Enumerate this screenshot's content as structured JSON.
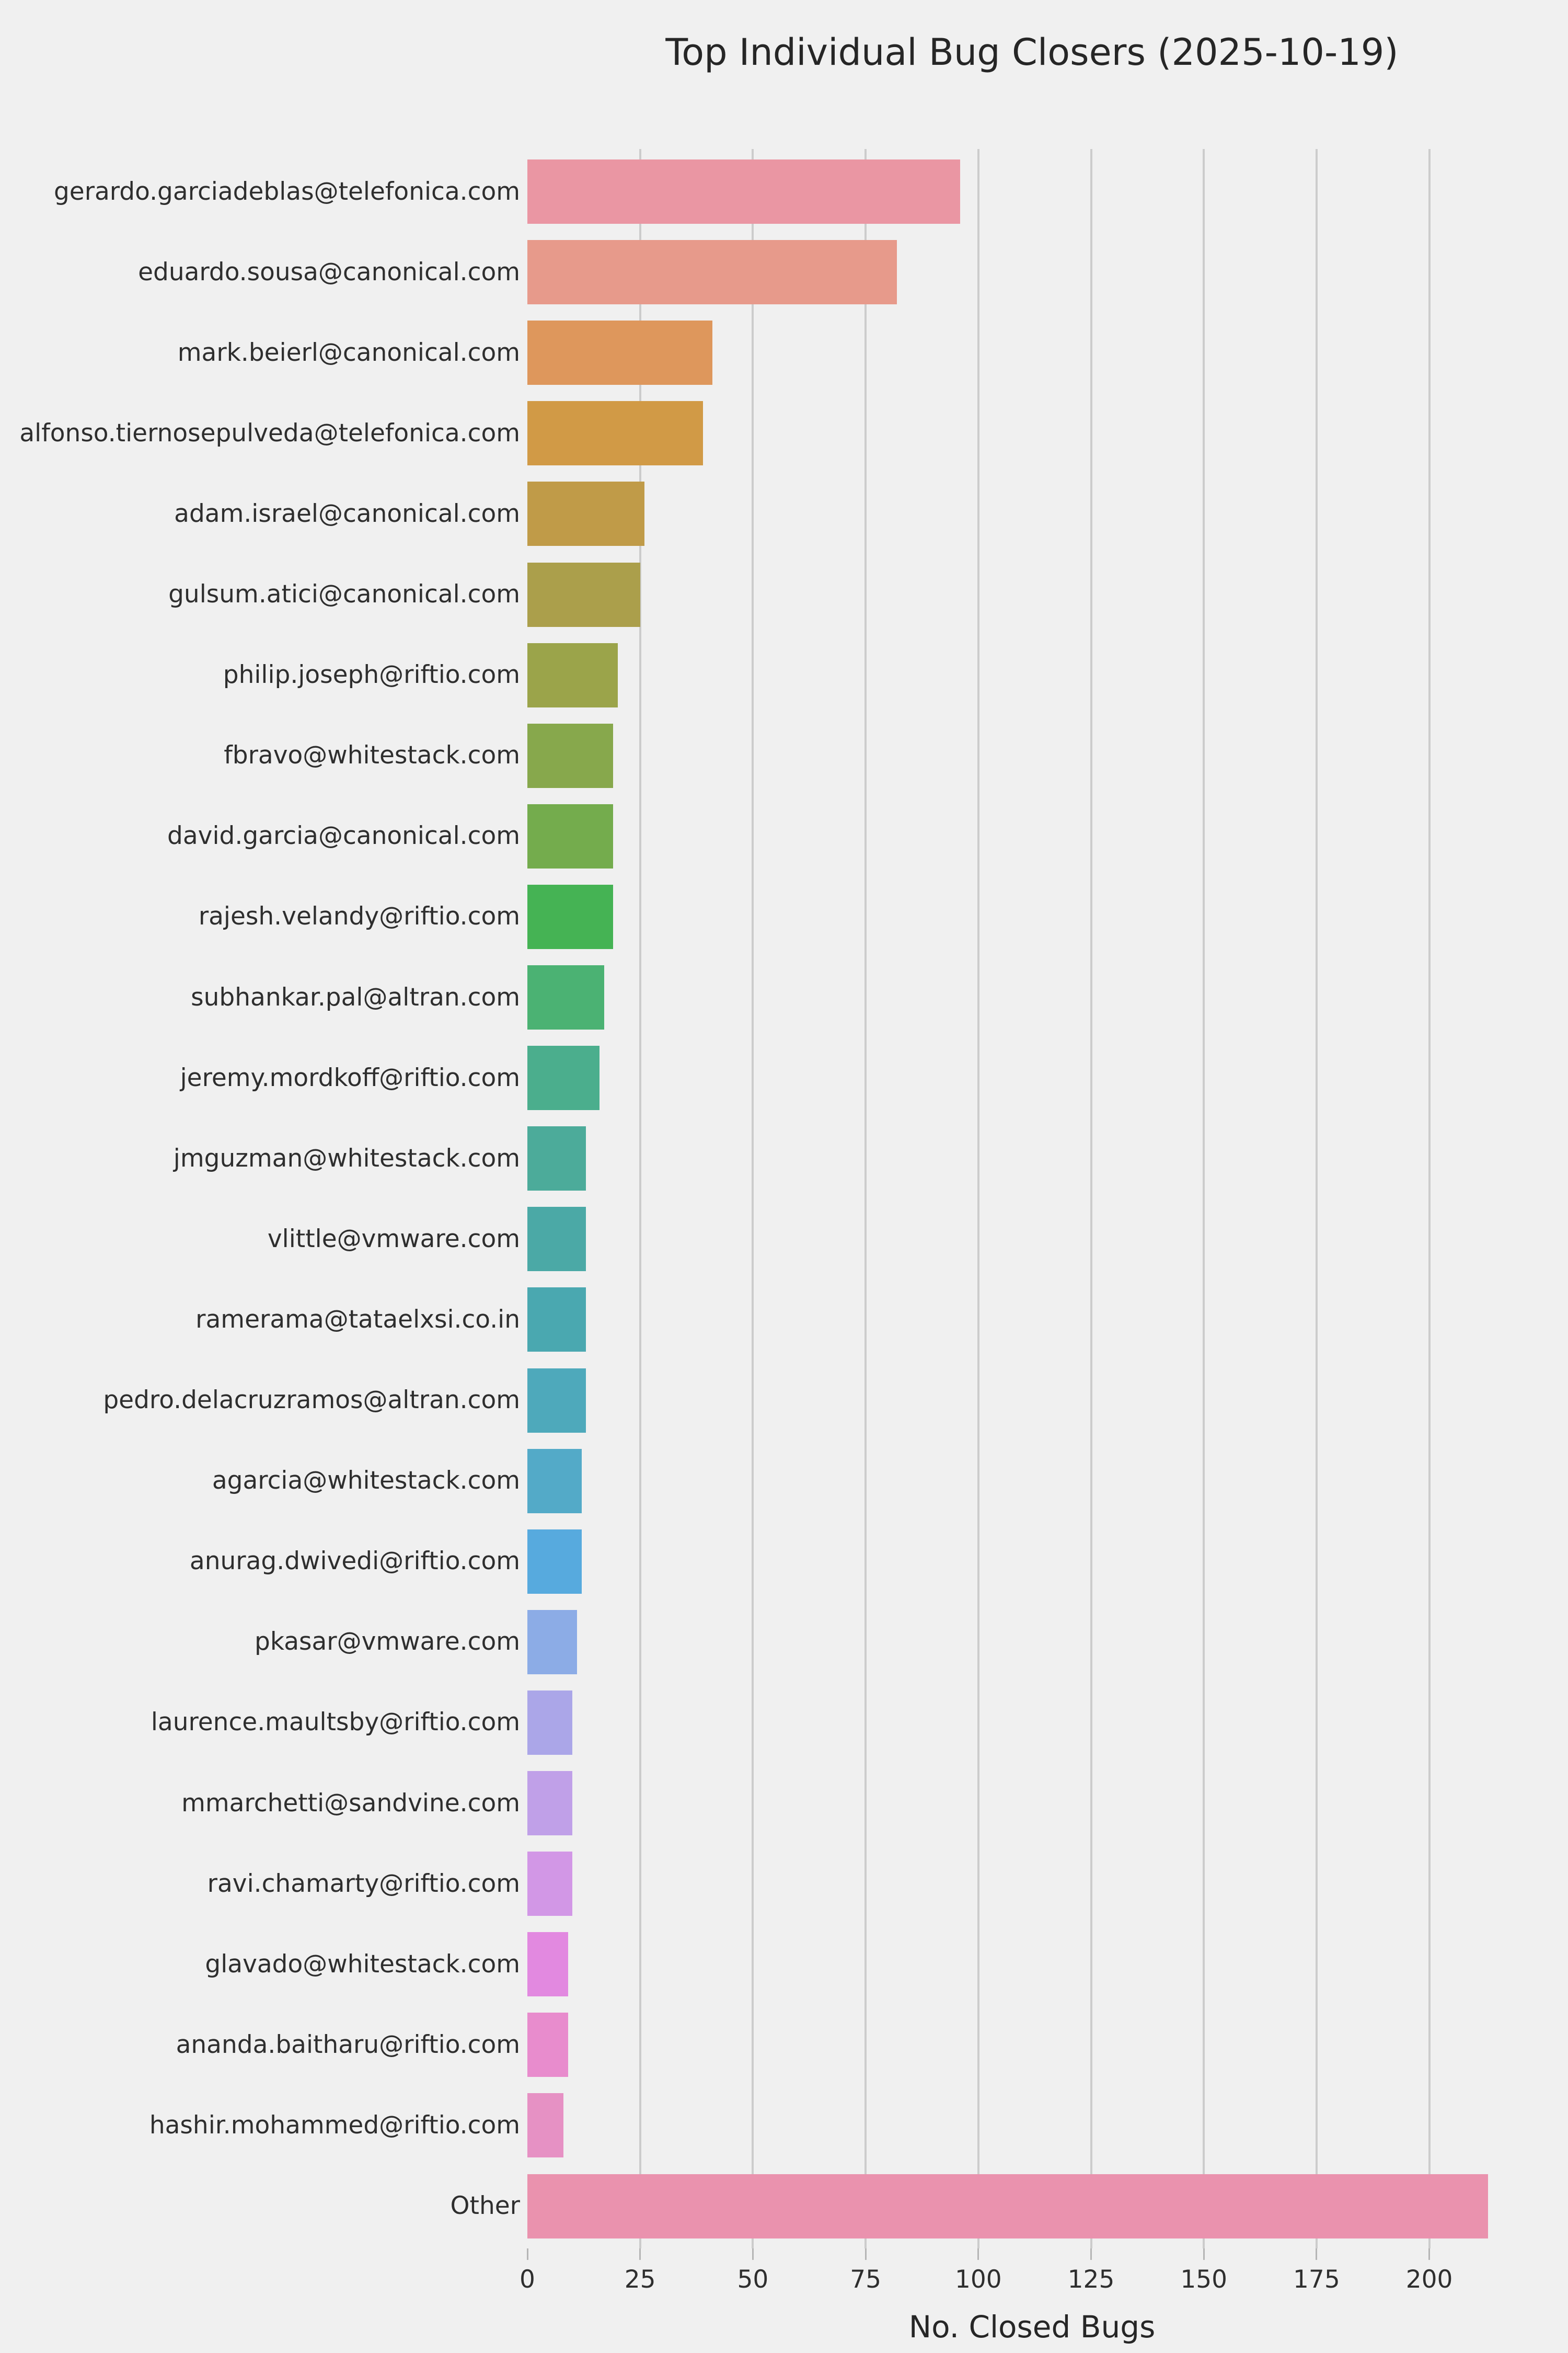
{
  "chart_data": {
    "type": "bar",
    "orientation": "horizontal",
    "title": "Top Individual Bug Closers (2025-10-19)",
    "xlabel": "No. Closed Bugs",
    "ylabel": "",
    "categories": [
      "gerardo.garciadeblas@telefonica.com",
      "eduardo.sousa@canonical.com",
      "mark.beierl@canonical.com",
      "alfonso.tiernosepulveda@telefonica.com",
      "adam.israel@canonical.com",
      "gulsum.atici@canonical.com",
      "philip.joseph@riftio.com",
      "fbravo@whitestack.com",
      "david.garcia@canonical.com",
      "rajesh.velandy@riftio.com",
      "subhankar.pal@altran.com",
      "jeremy.mordkoff@riftio.com",
      "jmguzman@whitestack.com",
      "vlittle@vmware.com",
      "ramerama@tataelxsi.co.in",
      "pedro.delacruzramos@altran.com",
      "agarcia@whitestack.com",
      "anurag.dwivedi@riftio.com",
      "pkasar@vmware.com",
      "laurence.maultsby@riftio.com",
      "mmarchetti@sandvine.com",
      "ravi.chamarty@riftio.com",
      "glavado@whitestack.com",
      "ananda.baitharu@riftio.com",
      "hashir.mohammed@riftio.com",
      "Other"
    ],
    "values": [
      96,
      82,
      41,
      39,
      26,
      25,
      20,
      19,
      19,
      19,
      17,
      16,
      13,
      13,
      13,
      13,
      12,
      12,
      11,
      10,
      10,
      10,
      9,
      9,
      8,
      213
    ],
    "bar_colors": [
      "#ea96a3",
      "#e79a8b",
      "#de975c",
      "#d19a46",
      "#c09b48",
      "#ab9f4b",
      "#9ba44a",
      "#87a84c",
      "#74ac4d",
      "#45b354",
      "#4bb273",
      "#4bae8d",
      "#4cab9a",
      "#4ba9a6",
      "#4aa8b0",
      "#4ea9bb",
      "#53aac8",
      "#57aade",
      "#8cace6",
      "#aba6e8",
      "#c0a0e8",
      "#d297e6",
      "#e289e0",
      "#e88ccd",
      "#e691c4",
      "#ea92ae"
    ],
    "xticks": [
      0,
      25,
      50,
      75,
      100,
      125,
      150,
      175,
      200
    ],
    "xlim": [
      0,
      224
    ],
    "grid": true,
    "gridline_color": "#cccccc",
    "legend": false,
    "background_color": "#f0f0f0",
    "text_color": "#2e2e2e"
  }
}
